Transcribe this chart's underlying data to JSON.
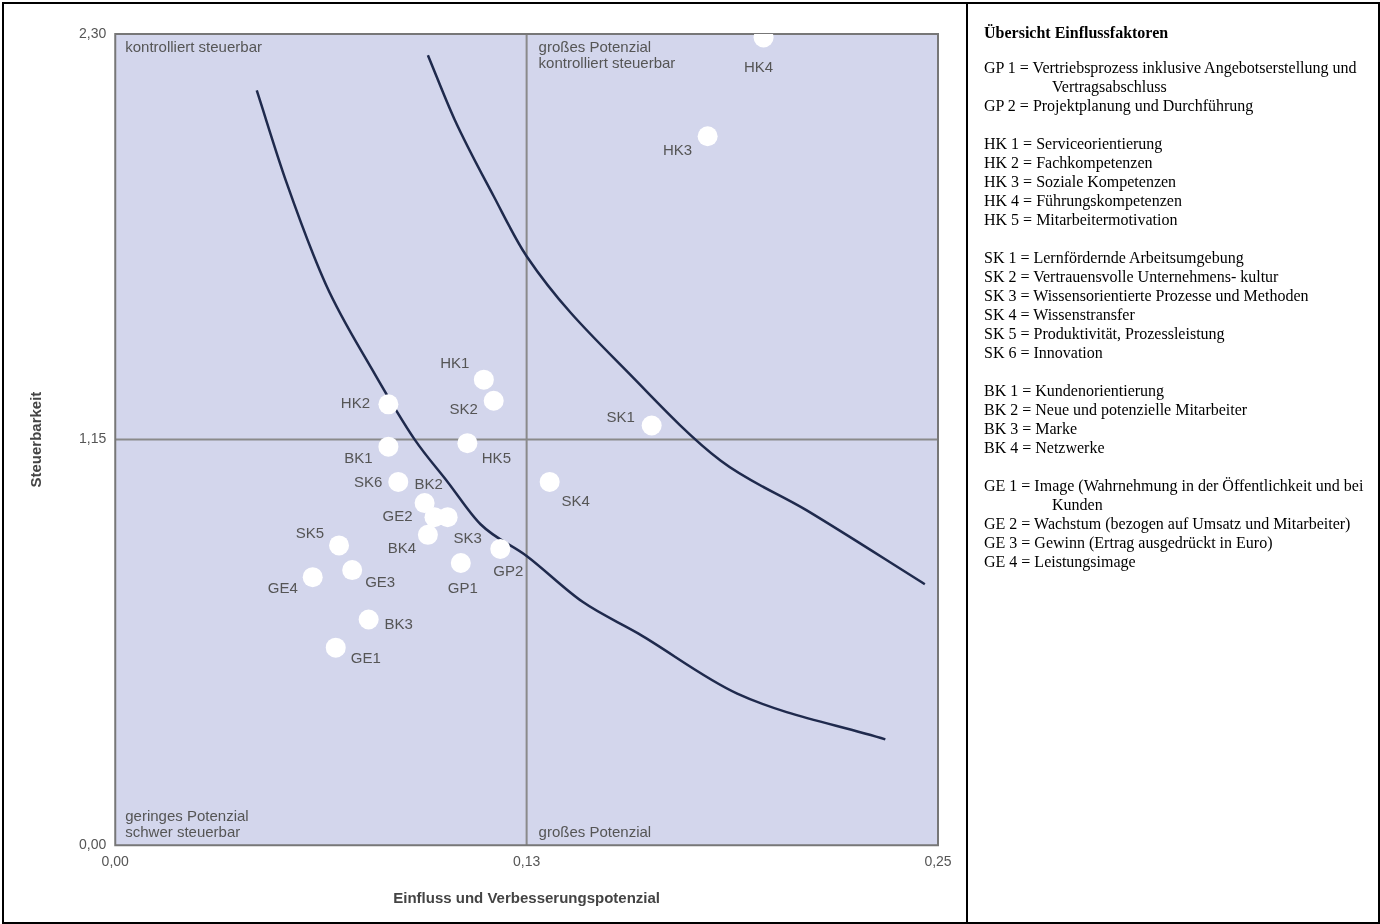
{
  "chart_data": [
    {
      "type": "scatter",
      "xlabel": "Einfluss und Verbesserungspotenzial",
      "ylabel": "Steuerbarkeit",
      "xlim": [
        0,
        0.25
      ],
      "xticks": [
        {
          "value": 0,
          "label": "0,00"
        },
        {
          "value": 0.125,
          "label": "0,13"
        },
        {
          "value": 0.25,
          "label": "0,25"
        }
      ],
      "ylim": [
        0,
        2.3
      ],
      "yticks": [
        {
          "value": 0,
          "label": "0,00"
        },
        {
          "value": 1.15,
          "label": "1,15"
        },
        {
          "value": 2.3,
          "label": "2,30"
        }
      ],
      "grid": false,
      "ref_lines": [
        {
          "axis": "x",
          "value": 0.125,
          "color": "#8a8a8a"
        },
        {
          "axis": "y",
          "value": 1.15,
          "color": "#8a8a8a"
        }
      ],
      "series": [
        {
          "type": "scatter",
          "color": "#ffffff",
          "marker": "circle",
          "x": [
            0.105,
            0.117,
            0.112,
            0.083,
            0.18,
            0.197,
            0.107,
            0.163,
            0.115,
            0.101,
            0.132,
            0.068,
            0.086,
            0.083,
            0.094,
            0.077,
            0.095,
            0.067,
            0.097,
            0.072,
            0.06
          ],
          "values": [
            0.8,
            0.84,
            1.32,
            1.25,
            2.01,
            2.29,
            1.14,
            1.19,
            1.26,
            0.93,
            1.03,
            0.85,
            1.03,
            1.13,
            0.97,
            0.64,
            0.88,
            0.56,
            0.93,
            0.78,
            0.76
          ]
        },
        {
          "type": "line",
          "color": "#1f2a4d",
          "marker": "none",
          "x": [
            0.043,
            0.052,
            0.064,
            0.078,
            0.091,
            0.101,
            0.111,
            0.125,
            0.142,
            0.159,
            0.189,
            0.234
          ],
          "values": [
            2.14,
            1.88,
            1.59,
            1.35,
            1.15,
            1.03,
            0.91,
            0.82,
            0.69,
            0.6,
            0.43,
            0.3
          ]
        },
        {
          "type": "line",
          "color": "#1f2a4d",
          "marker": "none",
          "x": [
            0.095,
            0.103,
            0.115,
            0.125,
            0.159,
            0.184,
            0.21,
            0.246
          ],
          "values": [
            2.24,
            2.06,
            1.84,
            1.67,
            1.31,
            1.09,
            0.95,
            0.74
          ]
        }
      ],
      "annotations": [
        "kontrolliert steuerbar",
        "großes Potenzial\nkontrolliert steuerbar",
        "geringes Potenzial\nschwer steuerbar",
        "großes Potenzial",
        {
          "text": "GP1",
          "x": 0.105,
          "y": 0.8
        },
        {
          "text": "GP2",
          "x": 0.117,
          "y": 0.84
        },
        {
          "text": "HK1",
          "x": 0.112,
          "y": 1.32
        },
        {
          "text": "HK2",
          "x": 0.083,
          "y": 1.25
        },
        {
          "text": "HK3",
          "x": 0.18,
          "y": 2.01
        },
        {
          "text": "HK4",
          "x": 0.197,
          "y": 2.29
        },
        {
          "text": "HK5",
          "x": 0.107,
          "y": 1.14
        },
        {
          "text": "SK1",
          "x": 0.163,
          "y": 1.19
        },
        {
          "text": "SK2",
          "x": 0.115,
          "y": 1.26
        },
        {
          "text": "SK3",
          "x": 0.101,
          "y": 0.93
        },
        {
          "text": "SK4",
          "x": 0.132,
          "y": 1.03
        },
        {
          "text": "SK5",
          "x": 0.068,
          "y": 0.85
        },
        {
          "text": "SK6",
          "x": 0.086,
          "y": 1.03
        },
        {
          "text": "BK1",
          "x": 0.083,
          "y": 1.13
        },
        {
          "text": "BK2",
          "x": 0.094,
          "y": 0.97
        },
        {
          "text": "BK3",
          "x": 0.077,
          "y": 0.64
        },
        {
          "text": "BK4",
          "x": 0.095,
          "y": 0.88
        },
        {
          "text": "GE1",
          "x": 0.067,
          "y": 0.56
        },
        {
          "text": "GE2",
          "x": 0.097,
          "y": 0.93
        },
        {
          "text": "GE3",
          "x": 0.072,
          "y": 0.78
        },
        {
          "text": "GE4",
          "x": 0.06,
          "y": 0.76
        }
      ]
    },
    {
      "type": "other",
      "title": "Übersicht Einflussfaktoren",
      "annotations": [
        "GP 1 = Vertriebsprozess inklusive Angebotserstellung und Vertragsabschluss",
        "GP 2 = Projektplanung und Durchführung",
        "HK 1 = Serviceorientierung",
        "HK 2 = Fachkompetenzen",
        "HK 3 = Soziale Kompetenzen",
        "HK 4 = Führungskompetenzen",
        "HK 5 = Mitarbeitermotivation",
        "SK 1 = Lernfördernde Arbeitsumgebung",
        "SK 2 = Vertrauensvolle Unternehmens- kultur",
        "SK 3 = Wissensorientierte Prozesse und Methoden",
        "SK 4 = Wissenstransfer",
        "SK 5 = Produktivität,  Prozessleistung",
        "SK 6 = Innovation",
        "BK 1 = Kundenorientierung",
        "BK 2 = Neue und potenzielle Mitarbeiter",
        "BK 3 = Marke",
        "BK 4 = Netzwerke",
        "GE 1 = Image (Wahrnehmung in der Öffentlichkeit und bei Kunden",
        "GE 2 = Wachstum (bezogen auf Umsatz und Mitarbeiter)",
        "GE 3 = Gewinn (Ertrag ausgedrückt in Euro)",
        "GE 4 = Leistungsimage"
      ]
    }
  ]
}
